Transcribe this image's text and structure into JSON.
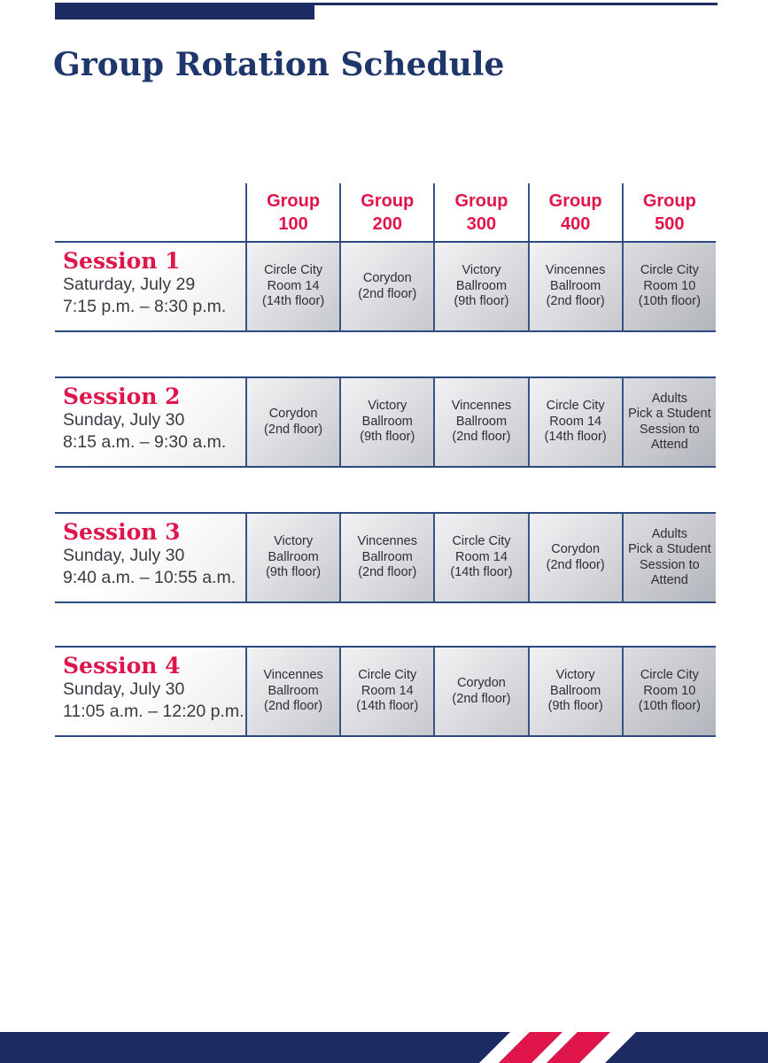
{
  "colors": {
    "navy": "#1c2c62",
    "border_blue": "#3a5284",
    "accent_red": "#e0164a",
    "cell_text": "#2f2f33"
  },
  "header": {
    "title": "Group Rotation Schedule"
  },
  "table": {
    "groups": [
      "Group\n100",
      "Group\n200",
      "Group\n300",
      "Group\n400",
      "Group\n500"
    ],
    "sessions": [
      {
        "name": "Session 1",
        "date": "Saturday, July 29",
        "time": "7:15 p.m. – 8:30 p.m.",
        "cells": [
          "Circle City\nRoom 14\n(14th floor)",
          "Corydon\n(2nd floor)",
          "Victory\nBallroom\n(9th floor)",
          "Vincennes\nBallroom\n(2nd floor)",
          "Circle City\nRoom 10\n(10th floor)"
        ]
      },
      {
        "name": "Session 2",
        "date": "Sunday, July 30",
        "time": "8:15 a.m. – 9:30 a.m.",
        "cells": [
          "Corydon\n(2nd floor)",
          "Victory\nBallroom\n(9th floor)",
          "Vincennes\nBallroom\n(2nd floor)",
          "Circle City\nRoom 14\n(14th floor)",
          "Adults\nPick a Student\nSession to\nAttend"
        ]
      },
      {
        "name": "Session 3",
        "date": "Sunday, July 30",
        "time": "9:40 a.m. – 10:55 a.m.",
        "cells": [
          "Victory\nBallroom\n(9th floor)",
          "Vincennes\nBallroom\n(2nd floor)",
          "Circle City\nRoom 14\n(14th floor)",
          "Corydon\n(2nd floor)",
          "Adults\nPick a Student\nSession to\nAttend"
        ]
      },
      {
        "name": "Session 4",
        "date": "Sunday, July 30",
        "time": "11:05 a.m. – 12:20 p.m.",
        "cells": [
          "Vincennes\nBallroom\n(2nd floor)",
          "Circle City\nRoom 14\n(14th floor)",
          "Corydon\n(2nd floor)",
          "Victory\nBallroom\n(9th floor)",
          "Circle City\nRoom 10\n(10th floor)"
        ]
      }
    ]
  }
}
